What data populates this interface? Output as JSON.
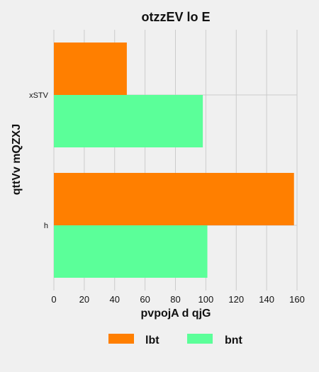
{
  "chart_data": {
    "type": "bar",
    "orientation": "horizontal",
    "title": "otzzEV lo E",
    "xlabel": "pvpojA d  qjG",
    "ylabel": "qttVv mQZXJ",
    "categories": [
      "xSTV",
      "h"
    ],
    "series": [
      {
        "name": "lbt",
        "values": [
          48,
          158
        ],
        "color": "#ff7f00"
      },
      {
        "name": "bnt",
        "values": [
          98,
          101
        ],
        "color": "#5bff99"
      }
    ],
    "xlim": [
      0,
      160
    ],
    "xticks": [
      "0",
      "20",
      "40",
      "60",
      "80",
      "100",
      "120",
      "140",
      "160"
    ],
    "grid": true,
    "legend_position": "bottom"
  }
}
